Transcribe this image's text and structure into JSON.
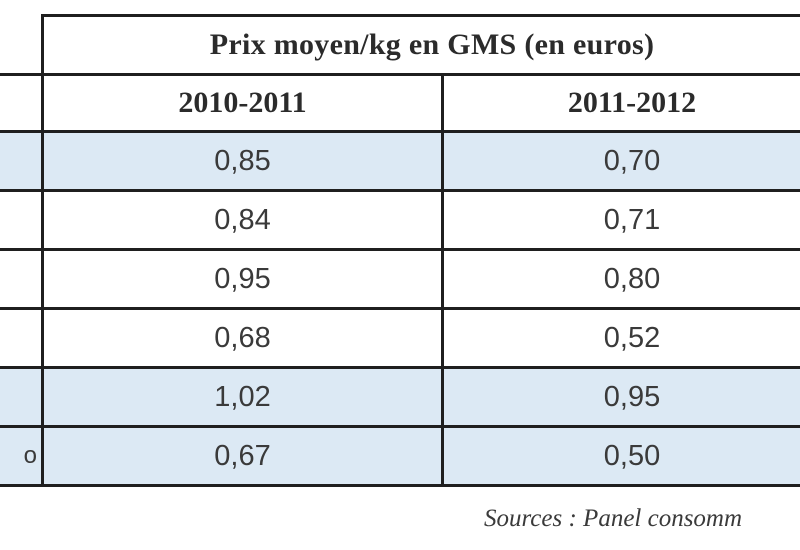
{
  "table": {
    "title": "Prix moyen/kg en GMS (en euros)",
    "columns": [
      "2010-2011",
      "2011-2012"
    ],
    "rows": [
      {
        "label": "",
        "values": [
          "0,85",
          "0,70"
        ],
        "shaded": true
      },
      {
        "label": "",
        "values": [
          "0,84",
          "0,71"
        ],
        "shaded": false
      },
      {
        "label": "",
        "values": [
          "0,95",
          "0,80"
        ],
        "shaded": false
      },
      {
        "label": "",
        "values": [
          "0,68",
          "0,52"
        ],
        "shaded": false
      },
      {
        "label": "",
        "values": [
          "1,02",
          "0,95"
        ],
        "shaded": true
      },
      {
        "label": "o",
        "values": [
          "0,67",
          "0,50"
        ],
        "shaded": true
      }
    ]
  },
  "source_note": "Sources : Panel consomm",
  "colors": {
    "shaded_row": "#dce9f4",
    "border": "#1f1f1f"
  }
}
